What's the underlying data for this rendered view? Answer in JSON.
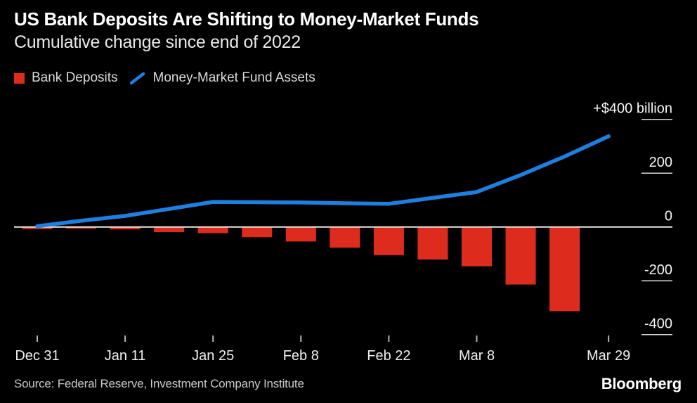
{
  "header": {
    "title": "US Bank Deposits Are Shifting to Money-Market Funds",
    "subtitle": "Cumulative change since end of 2022"
  },
  "legend": {
    "items": [
      {
        "label": "Bank Deposits",
        "marker": "square",
        "color": "#dd2b1e"
      },
      {
        "label": "Money-Market Fund Assets",
        "marker": "line",
        "color": "#1f7fe0"
      }
    ]
  },
  "footer": {
    "source": "Source: Federal Reserve, Investment Company Institute",
    "brand": "Bloomberg"
  },
  "chart_data": {
    "type": "combo",
    "title": "US Bank Deposits Are Shifting to Money-Market Funds",
    "subtitle": "Cumulative change since end of 2022",
    "unit": "USD billions, cumulative change since end of 2022",
    "x_axis": {
      "kind": "weekly-categorical",
      "ticks": [
        {
          "index": 0,
          "label": "Dec 31"
        },
        {
          "index": 2,
          "label": "Jan 11"
        },
        {
          "index": 4,
          "label": "Jan 25"
        },
        {
          "index": 6,
          "label": "Feb 8"
        },
        {
          "index": 8,
          "label": "Feb 22"
        },
        {
          "index": 10,
          "label": "Mar 8"
        },
        {
          "index": 13,
          "label": "Mar 29"
        }
      ]
    },
    "y_axis": {
      "range": [
        -410,
        480
      ],
      "grid": "right-side-ticks",
      "ticks": [
        {
          "value": 400,
          "label": "+$400 billion"
        },
        {
          "value": 200,
          "label": "200"
        },
        {
          "value": 0,
          "label": "0"
        },
        {
          "value": -200,
          "label": "-200"
        },
        {
          "value": -400,
          "label": "-400"
        }
      ]
    },
    "legend_position": "top-left",
    "series": [
      {
        "name": "Bank Deposits",
        "type": "bar",
        "color": "#dd2b1e",
        "x_index": [
          0,
          1,
          2,
          3,
          4,
          5,
          6,
          7,
          8,
          9,
          10,
          11,
          12
        ],
        "values": [
          -8,
          -6,
          -9,
          -19,
          -23,
          -38,
          -54,
          -77,
          -105,
          -121,
          -146,
          -214,
          -313
        ]
      },
      {
        "name": "Money-Market Fund Assets",
        "type": "line",
        "color": "#1f7fe0",
        "x_index": [
          0,
          1,
          2,
          3,
          4,
          5,
          6,
          7,
          8,
          9,
          10,
          11,
          12,
          13
        ],
        "values": [
          3,
          23,
          41,
          67,
          93,
          92,
          91,
          88,
          86,
          108,
          130,
          193,
          262,
          337
        ]
      }
    ],
    "style": {
      "background": "#000000",
      "grid_tick_color": "#d8d8d8",
      "zero_line_color": "#eae7e0",
      "axis_tick_color": "#b5b5b5"
    }
  }
}
